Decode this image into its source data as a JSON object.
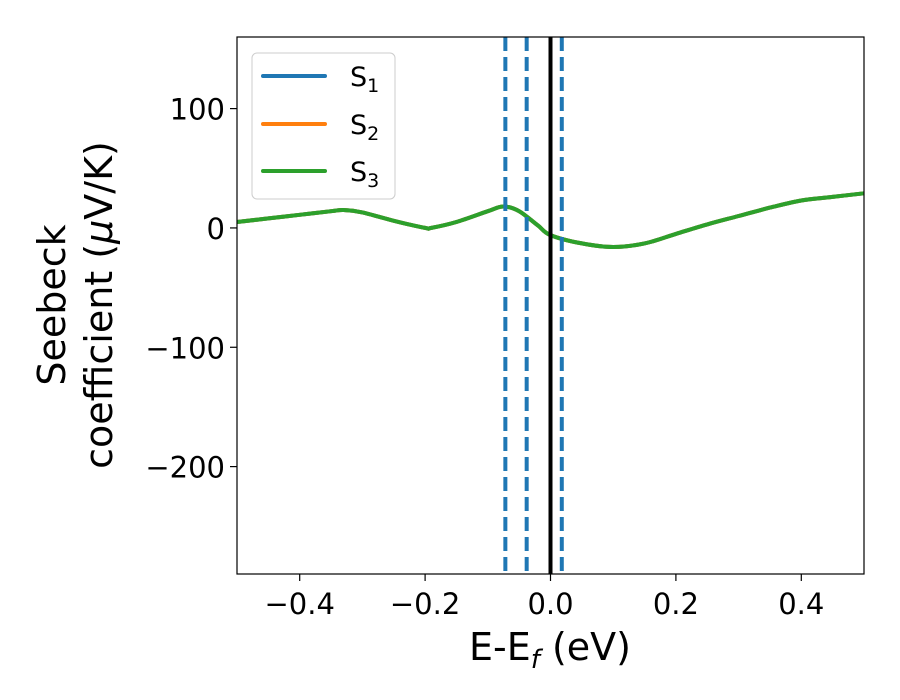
{
  "chart_data": {
    "type": "line",
    "xlabel": {
      "base": "E-E",
      "sub": "f",
      "rest": " (eV)"
    },
    "ylabel": {
      "line1": "Seebeck",
      "line2_pre": "coefficient  (",
      "mu": "μ",
      "line2_post": "V/K)"
    },
    "xlim": [
      -0.5,
      0.5
    ],
    "ylim": [
      -290,
      160
    ],
    "x_ticks": [
      {
        "value": -0.4,
        "label": "−0.4"
      },
      {
        "value": -0.2,
        "label": "−0.2"
      },
      {
        "value": 0.0,
        "label": "0.0"
      },
      {
        "value": 0.2,
        "label": "0.2"
      },
      {
        "value": 0.4,
        "label": "0.4"
      }
    ],
    "y_ticks": [
      {
        "value": 100,
        "label": "100"
      },
      {
        "value": 0,
        "label": "0"
      },
      {
        "value": -100,
        "label": "−100"
      },
      {
        "value": -200,
        "label": "−200"
      }
    ],
    "grid": false,
    "legend_position": "top-left",
    "x": [
      -0.5,
      -0.45,
      -0.4,
      -0.35,
      -0.33,
      -0.3,
      -0.25,
      -0.2,
      -0.19,
      -0.15,
      -0.1,
      -0.075,
      -0.05,
      -0.02,
      0.0,
      0.05,
      0.1,
      0.15,
      0.2,
      0.25,
      0.3,
      0.35,
      0.4,
      0.45,
      0.5
    ],
    "series": [
      {
        "name": "S",
        "sub": "1",
        "color": "#1f77b4",
        "values": [
          5,
          8,
          11,
          14,
          15,
          13,
          6,
          0,
          0,
          5,
          14,
          18,
          14,
          2,
          -6,
          -13,
          -16,
          -13,
          -5,
          3,
          10,
          17,
          23,
          26,
          29
        ]
      },
      {
        "name": "S",
        "sub": "2",
        "color": "#ff7f0e",
        "values": [
          5,
          8,
          11,
          14,
          15,
          13,
          6,
          0,
          0,
          5,
          14,
          18,
          14,
          2,
          -6,
          -13,
          -16,
          -13,
          -5,
          3,
          10,
          17,
          23,
          26,
          29
        ]
      },
      {
        "name": "S",
        "sub": "3",
        "color": "#2ca02c",
        "values": [
          5,
          8,
          11,
          14,
          15,
          13,
          6,
          0,
          0,
          5,
          14,
          18,
          14,
          2,
          -6,
          -13,
          -16,
          -13,
          -5,
          3,
          10,
          17,
          23,
          26,
          29
        ]
      }
    ],
    "vertical_lines": [
      {
        "x": -0.072,
        "color": "#1f77b4",
        "style": "dashed"
      },
      {
        "x": -0.038,
        "color": "#1f77b4",
        "style": "dashed"
      },
      {
        "x": 0.0,
        "color": "#000000",
        "style": "solid"
      },
      {
        "x": 0.018,
        "color": "#1f77b4",
        "style": "dashed"
      }
    ]
  }
}
